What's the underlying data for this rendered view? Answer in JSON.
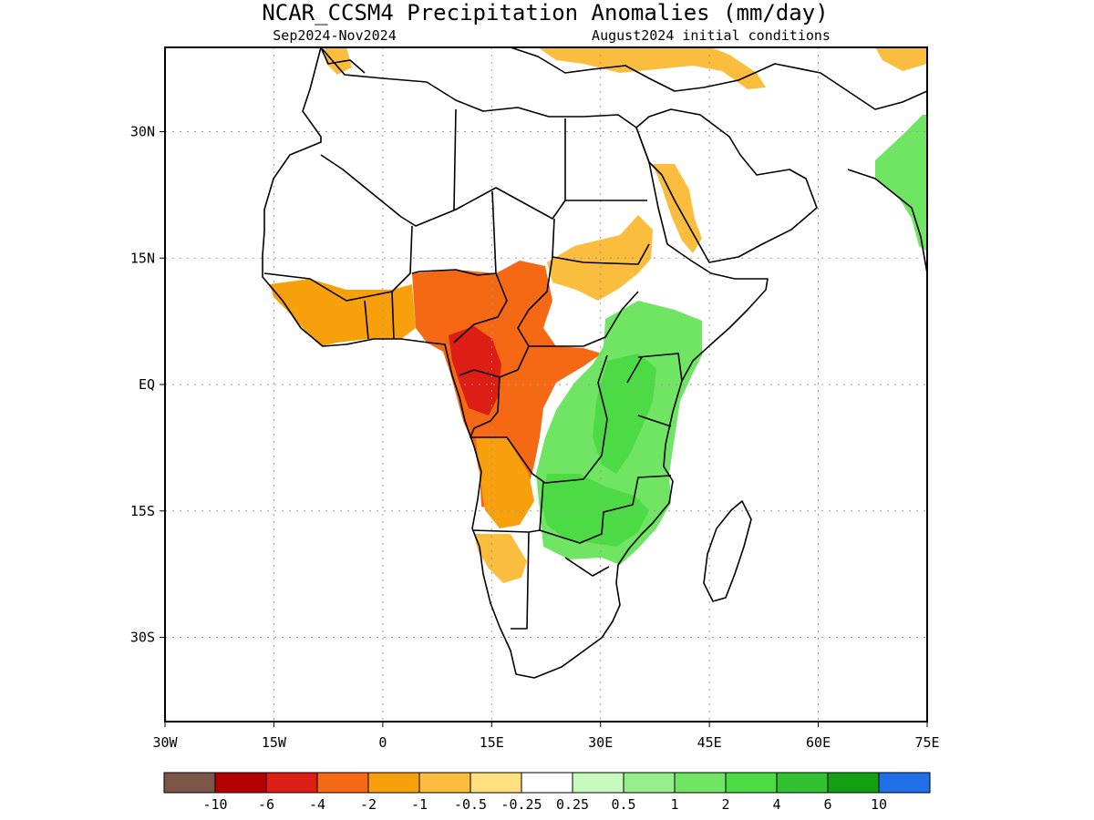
{
  "title": "NCAR_CCSM4 Precipitation Anomalies (mm/day)",
  "subtitle_left": "Sep2024-Nov2024",
  "subtitle_right": "August2024 initial conditions",
  "axes": {
    "lon_ticks": [
      "30W",
      "15W",
      "0",
      "15E",
      "30E",
      "45E",
      "60E",
      "75E"
    ],
    "lat_ticks": [
      "30N",
      "15N",
      "EQ",
      "15S",
      "30S"
    ],
    "lon_range": [
      -30,
      75
    ],
    "lat_range": [
      -40,
      40
    ],
    "grid": true
  },
  "colorbar": {
    "labels": [
      "-10",
      "-6",
      "-4",
      "-2",
      "-1",
      "-0.5",
      "-0.25",
      "0.25",
      "0.5",
      "1",
      "2",
      "4",
      "6",
      "10"
    ],
    "colors": [
      "#7a5548",
      "#b40000",
      "#dc1e14",
      "#f56814",
      "#f8a00c",
      "#fbbd3d",
      "#ffe07e",
      "#ffffff",
      "#c8fac0",
      "#96ee8a",
      "#70e564",
      "#4ddb45",
      "#30c230",
      "#12a012",
      "#2070e8"
    ]
  },
  "anomaly_regions": [
    {
      "name": "west-africa-coast-dry",
      "level": "-1"
    },
    {
      "name": "congo-basin-dry",
      "level": "-2"
    },
    {
      "name": "gabon-core-dry",
      "level": "-4"
    },
    {
      "name": "sahel-light-dry",
      "level": "-0.5"
    },
    {
      "name": "angola-dry",
      "level": "-1"
    },
    {
      "name": "namibia-light-dry",
      "level": "-0.5"
    },
    {
      "name": "east-africa-wet",
      "level": "1"
    },
    {
      "name": "lake-victoria-wet",
      "level": "2"
    },
    {
      "name": "southern-africa-wet",
      "level": "2"
    },
    {
      "name": "india-wet",
      "level": "1"
    },
    {
      "name": "red-sea-light-dry",
      "level": "-0.5"
    },
    {
      "name": "mediterranean-light-dry",
      "level": "-0.5"
    }
  ]
}
